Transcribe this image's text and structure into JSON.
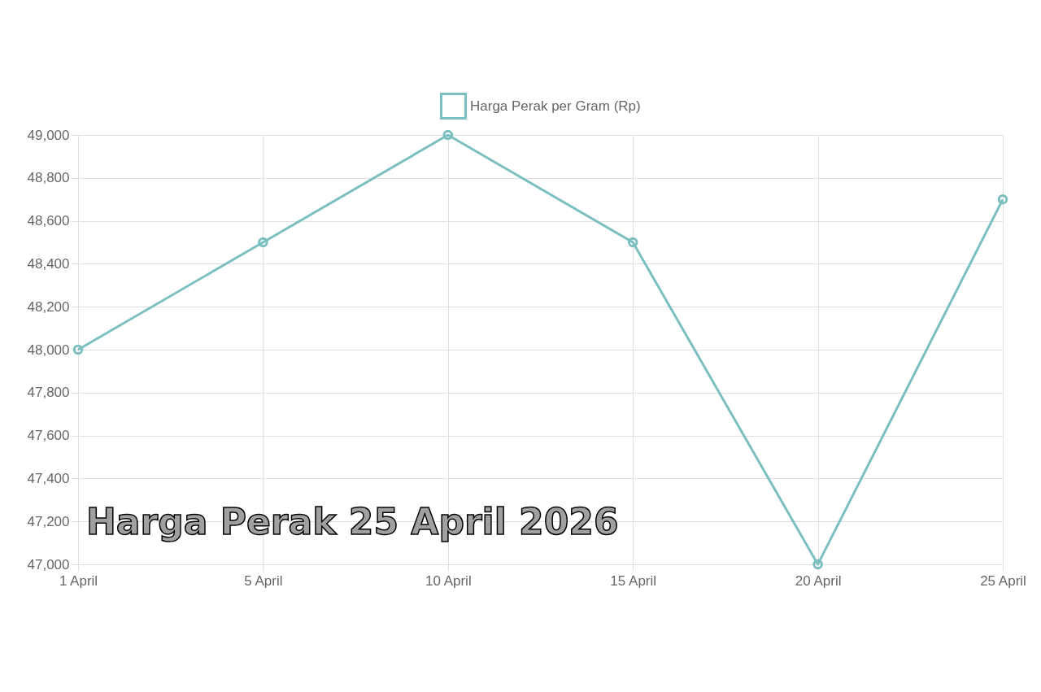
{
  "chart_data": {
    "type": "line",
    "title": "Harga Perak 25 April 2026",
    "categories": [
      "1 April",
      "5 April",
      "10 April",
      "15 April",
      "20 April",
      "25 April"
    ],
    "series": [
      {
        "name": "Harga Perak per Gram (Rp)",
        "color": "#7bbfc1",
        "values": [
          48000,
          48500,
          49000,
          48500,
          47000,
          48700
        ]
      }
    ],
    "ylim": [
      47000,
      49000
    ],
    "yticks": [
      {
        "value": 47000,
        "label": "47,000"
      },
      {
        "value": 47200,
        "label": "47,200"
      },
      {
        "value": 47400,
        "label": "47,400"
      },
      {
        "value": 47600,
        "label": "47,600"
      },
      {
        "value": 47800,
        "label": "47,800"
      },
      {
        "value": 48000,
        "label": "48,000"
      },
      {
        "value": 48200,
        "label": "48,200"
      },
      {
        "value": 48400,
        "label": "48,400"
      },
      {
        "value": 48600,
        "label": "48,600"
      },
      {
        "value": 48800,
        "label": "48,800"
      },
      {
        "value": 49000,
        "label": "49,000"
      }
    ],
    "grid": true,
    "legend": "top",
    "marker": "circle",
    "line_style": "solid"
  }
}
